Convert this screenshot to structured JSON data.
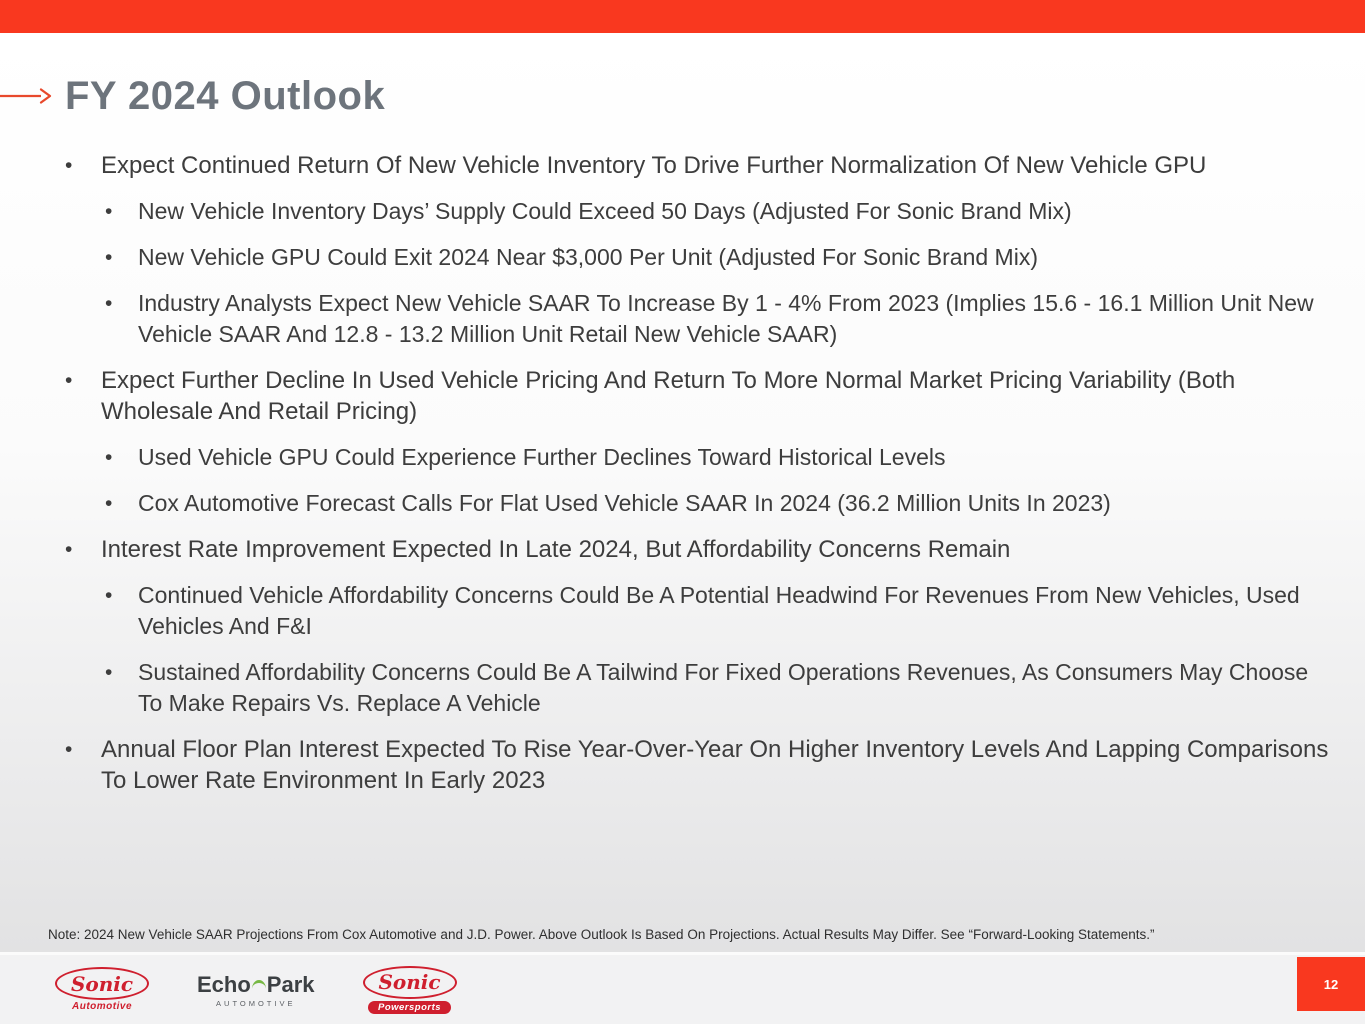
{
  "slide": {
    "title": "FY 2024 Outlook",
    "bullet_char": "•",
    "bullets": [
      {
        "text": "Expect Continued Return Of New Vehicle Inventory To Drive Further Normalization Of New Vehicle GPU",
        "sub": [
          "New Vehicle Inventory Days’ Supply Could Exceed 50 Days (Adjusted For Sonic Brand Mix)",
          "New Vehicle GPU Could Exit 2024 Near $3,000 Per Unit (Adjusted For Sonic Brand Mix)",
          "Industry Analysts Expect New Vehicle SAAR To Increase By 1 - 4% From 2023 (Implies 15.6 - 16.1 Million Unit New Vehicle SAAR And 12.8 - 13.2 Million Unit Retail New Vehicle SAAR)"
        ]
      },
      {
        "text": "Expect Further Decline In Used Vehicle Pricing And Return To More Normal Market Pricing Variability (Both Wholesale And Retail Pricing)",
        "sub": [
          "Used Vehicle GPU Could Experience Further Declines Toward Historical Levels",
          "Cox Automotive Forecast Calls For Flat Used Vehicle SAAR In 2024 (36.2 Million Units In 2023)"
        ]
      },
      {
        "text": "Interest Rate Improvement Expected In Late 2024, But Affordability Concerns Remain",
        "sub": [
          "Continued Vehicle Affordability Concerns Could Be A Potential Headwind For Revenues From New Vehicles, Used Vehicles And F&I",
          "Sustained Affordability Concerns Could Be A Tailwind For Fixed Operations Revenues, As Consumers May Choose To Make Repairs Vs. Replace A Vehicle"
        ]
      },
      {
        "text": "Annual Floor Plan Interest Expected To Rise Year-Over-Year On Higher Inventory Levels And Lapping Comparisons To Lower Rate Environment In Early 2023",
        "sub": []
      }
    ],
    "note": "Note: 2024 New Vehicle SAAR Projections From Cox Automotive and J.D. Power. Above Outlook Is Based On Projections. Actual Results May Differ. See “Forward-Looking Statements.”"
  },
  "footer": {
    "page_number": "12",
    "logos": {
      "sonic_automotive": {
        "name": "Sonic",
        "sub": "Automotive"
      },
      "echopark": {
        "part1": "Echo",
        "part2": "Park",
        "sub": "AUTOMOTIVE"
      },
      "sonic_powersports": {
        "name": "Sonic",
        "sub": "Powersports"
      }
    }
  },
  "colors": {
    "accent_red": "#f9381f",
    "logo_red": "#cf1f2e",
    "echopark_green": "#76b843",
    "title_gray": "#6d747c",
    "body_text": "#3d3d3d"
  }
}
